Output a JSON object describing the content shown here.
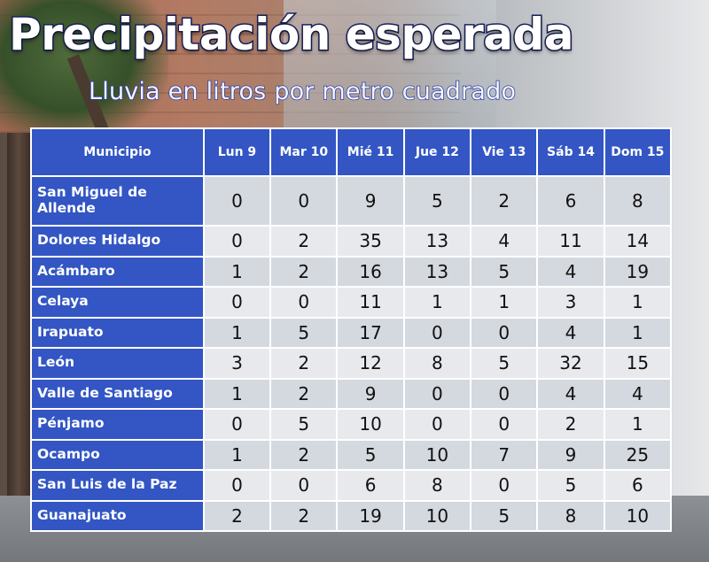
{
  "title": "Precipitación esperada",
  "subtitle": "Lluvia en litros por metro cuadrado",
  "table": {
    "header": [
      "Municipio",
      "Lun 9",
      "Mar 10",
      "Mié 11",
      "Jue 12",
      "Vie 13",
      "Sáb 14",
      "Dom 15"
    ],
    "rows": [
      {
        "municipio": "San Miguel de Allende",
        "values": [
          "0",
          "0",
          "9",
          "5",
          "2",
          "6",
          "8"
        ]
      },
      {
        "municipio": "Dolores Hidalgo",
        "values": [
          "0",
          "2",
          "35",
          "13",
          "4",
          "11",
          "14"
        ]
      },
      {
        "municipio": "Acámbaro",
        "values": [
          "1",
          "2",
          "16",
          "13",
          "5",
          "4",
          "19"
        ]
      },
      {
        "municipio": "Celaya",
        "values": [
          "0",
          "0",
          "11",
          "1",
          "1",
          "3",
          "1"
        ]
      },
      {
        "municipio": "Irapuato",
        "values": [
          "1",
          "5",
          "17",
          "0",
          "0",
          "4",
          "1"
        ]
      },
      {
        "municipio": "León",
        "values": [
          "3",
          "2",
          "12",
          "8",
          "5",
          "32",
          "15"
        ]
      },
      {
        "municipio": "Valle de Santiago",
        "values": [
          "1",
          "2",
          "9",
          "0",
          "0",
          "4",
          "4"
        ]
      },
      {
        "municipio": "Pénjamo",
        "values": [
          "0",
          "5",
          "10",
          "0",
          "0",
          "2",
          "1"
        ]
      },
      {
        "municipio": "Ocampo",
        "values": [
          "1",
          "2",
          "5",
          "10",
          "7",
          "9",
          "25"
        ]
      },
      {
        "municipio": "San Luis de la Paz",
        "values": [
          "0",
          "0",
          "6",
          "8",
          "0",
          "5",
          "6"
        ]
      },
      {
        "municipio": "Guanajuato",
        "values": [
          "2",
          "2",
          "19",
          "10",
          "5",
          "8",
          "10"
        ]
      }
    ]
  },
  "colors": {
    "header_bg": "#3356c4",
    "cell_bg": "#d4d8df",
    "title_stroke": "#17205a"
  }
}
